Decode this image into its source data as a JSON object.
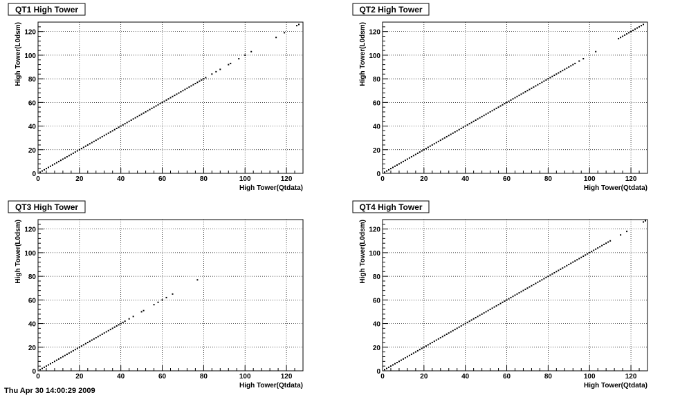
{
  "chart_data": [
    {
      "type": "scatter",
      "title": "QT1 High Tower",
      "xlabel": "High Tower(Qtdata)",
      "ylabel": "High Tower(L0dsm)",
      "xlim": [
        0,
        128
      ],
      "ylim": [
        0,
        128
      ],
      "xticks": [
        0,
        20,
        40,
        60,
        80,
        100,
        120
      ],
      "yticks": [
        0,
        20,
        40,
        60,
        80,
        100,
        120
      ],
      "grid": true,
      "points": {
        "diagonal_ranges": [
          [
            1,
            81
          ]
        ],
        "extra_x": [
          84,
          86,
          88,
          92,
          93,
          97,
          100,
          103,
          115,
          119,
          125,
          126
        ]
      }
    },
    {
      "type": "scatter",
      "title": "QT2 High Tower",
      "xlabel": "High Tower(Qtdata)",
      "ylabel": "High Tower(L0dsm)",
      "xlim": [
        0,
        128
      ],
      "ylim": [
        0,
        128
      ],
      "xticks": [
        0,
        20,
        40,
        60,
        80,
        100,
        120
      ],
      "yticks": [
        0,
        20,
        40,
        60,
        80,
        100,
        120
      ],
      "grid": true,
      "points": {
        "diagonal_ranges": [
          [
            1,
            93
          ],
          [
            114,
            126
          ]
        ],
        "extra_x": [
          95,
          97,
          103
        ]
      }
    },
    {
      "type": "scatter",
      "title": "QT3 High Tower",
      "xlabel": "High Tower(Qtdata)",
      "ylabel": "High Tower(L0dsm)",
      "xlim": [
        0,
        128
      ],
      "ylim": [
        0,
        128
      ],
      "xticks": [
        0,
        20,
        40,
        60,
        80,
        100,
        120
      ],
      "yticks": [
        0,
        20,
        40,
        60,
        80,
        100,
        120
      ],
      "grid": true,
      "points": {
        "diagonal_ranges": [
          [
            1,
            42
          ]
        ],
        "extra_x": [
          44,
          46,
          50,
          51,
          56,
          58,
          60,
          62,
          65,
          77
        ]
      }
    },
    {
      "type": "scatter",
      "title": "QT4 High Tower",
      "xlabel": "High Tower(Qtdata)",
      "ylabel": "High Tower(L0dsm)",
      "xlim": [
        0,
        128
      ],
      "ylim": [
        0,
        128
      ],
      "xticks": [
        0,
        20,
        40,
        60,
        80,
        100,
        120
      ],
      "yticks": [
        0,
        20,
        40,
        60,
        80,
        100,
        120
      ],
      "grid": true,
      "points": {
        "diagonal_ranges": [
          [
            1,
            110
          ]
        ],
        "extra_x": [
          115,
          118,
          126,
          127
        ]
      }
    }
  ],
  "footer_text": "Thu Apr 30 14:00:29 2009"
}
